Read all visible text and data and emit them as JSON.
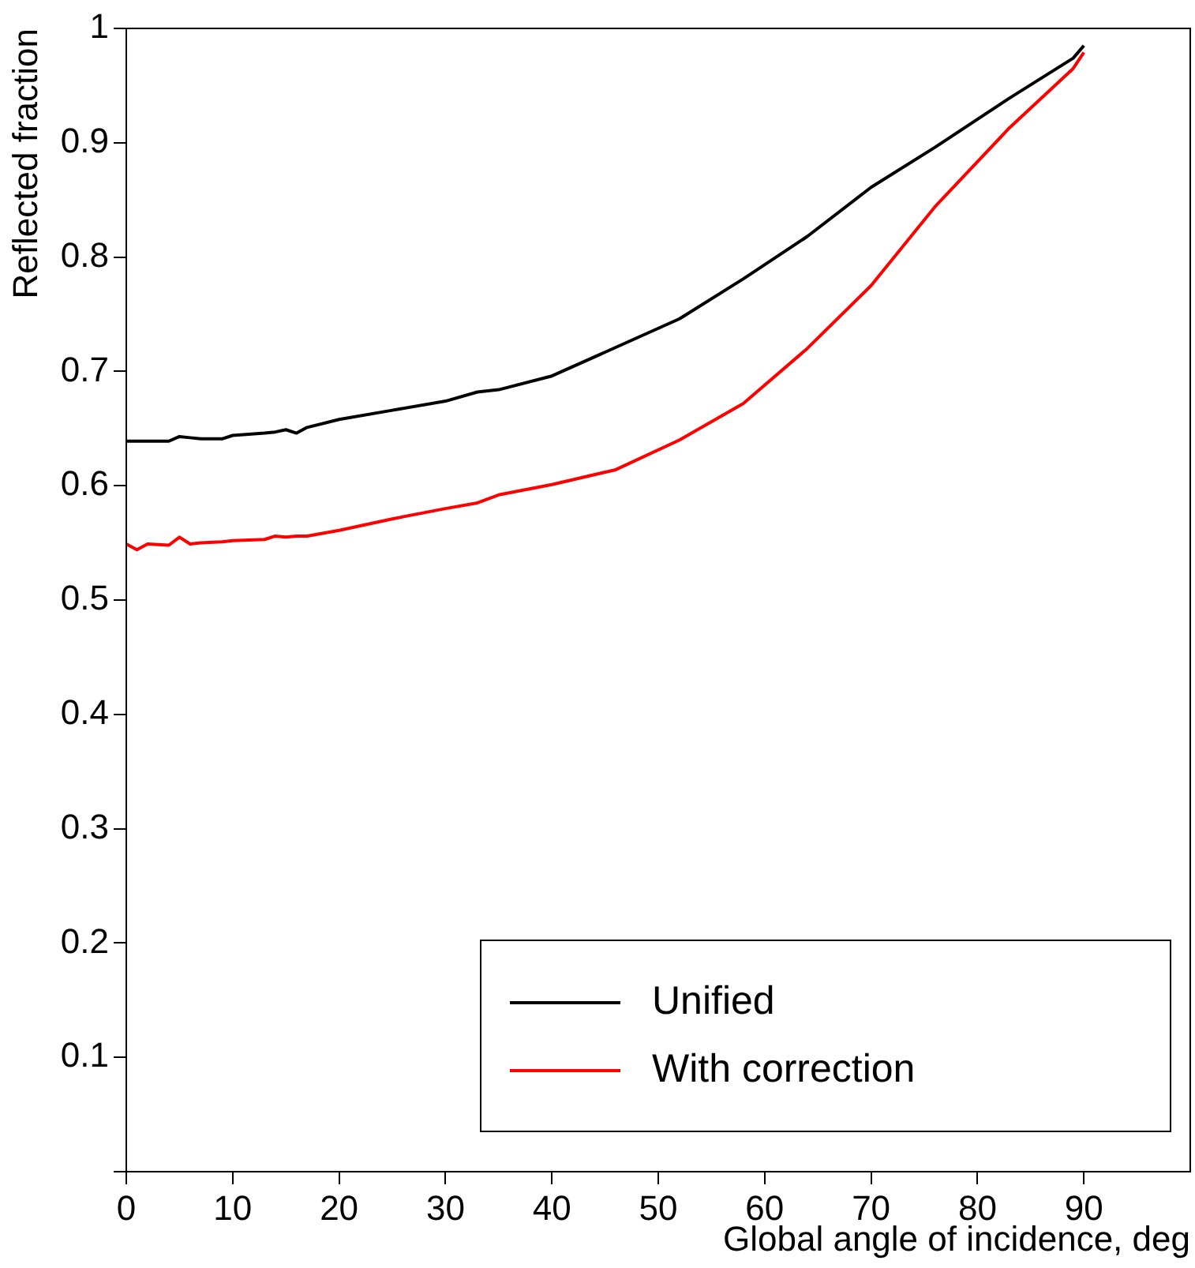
{
  "chart_data": {
    "type": "line",
    "xlabel": "Global angle of incidence, deg",
    "ylabel": "Reflected fraction",
    "x": [
      0,
      1,
      2,
      4,
      5,
      6,
      7,
      9,
      10,
      13,
      14,
      15,
      16,
      17,
      20,
      25,
      30,
      33,
      35,
      40,
      46,
      52,
      58,
      64,
      70,
      76,
      83,
      89,
      90
    ],
    "series": [
      {
        "name": "Unified",
        "color": "#000000",
        "values": [
          0.639,
          0.639,
          0.639,
          0.639,
          0.643,
          0.642,
          0.641,
          0.641,
          0.644,
          0.646,
          0.647,
          0.649,
          0.646,
          0.651,
          0.658,
          0.666,
          0.674,
          0.682,
          0.684,
          0.696,
          0.721,
          0.746,
          0.781,
          0.818,
          0.861,
          0.896,
          0.939,
          0.974,
          0.985
        ]
      },
      {
        "name": "With correction",
        "color": "#ff0000",
        "values": [
          0.549,
          0.544,
          0.549,
          0.548,
          0.555,
          0.549,
          0.55,
          0.551,
          0.552,
          0.553,
          0.556,
          0.555,
          0.556,
          0.556,
          0.561,
          0.571,
          0.58,
          0.585,
          0.592,
          0.601,
          0.614,
          0.64,
          0.672,
          0.72,
          0.775,
          0.844,
          0.913,
          0.965,
          0.979
        ]
      }
    ],
    "xlim": [
      0,
      100
    ],
    "xticks": [
      0,
      10,
      20,
      30,
      40,
      50,
      60,
      70,
      80,
      90
    ],
    "ylim": [
      0,
      1
    ],
    "yticks": [
      {
        "value": 0,
        "label": null
      },
      0.1,
      0.2,
      0.3,
      0.4,
      0.5,
      0.6,
      0.7,
      0.8,
      0.9,
      1
    ],
    "grid": false,
    "legend": "bottom right",
    "marker": "none",
    "line_style": "solid"
  }
}
